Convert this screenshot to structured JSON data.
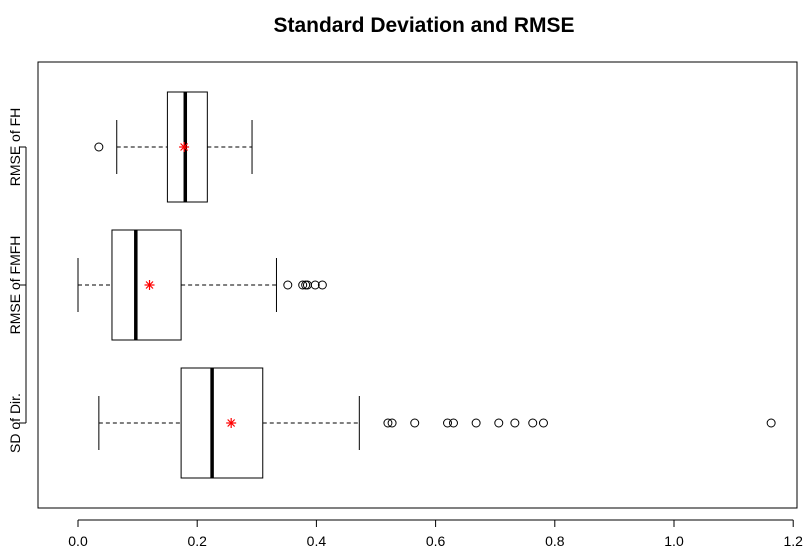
{
  "chart_data": {
    "type": "boxplot",
    "orientation": "horizontal",
    "title": "Standard Deviation and RMSE",
    "xlabel": "",
    "ylabel": "",
    "xlim": [
      -0.05,
      1.22
    ],
    "x_ticks": [
      0.0,
      0.2,
      0.4,
      0.6,
      0.8,
      1.0,
      1.2
    ],
    "x_tick_labels": [
      "0.0",
      "0.2",
      "0.4",
      "0.6",
      "0.8",
      "1.0",
      "1.2"
    ],
    "grid": false,
    "mean_marker_color": "#ff0000",
    "categories": [
      "SD of Dir.",
      "RMSE of FMFH",
      "RMSE of FH"
    ],
    "boxes": [
      {
        "label": "SD of Dir.",
        "whisker_low": 0.035,
        "q1": 0.173,
        "median": 0.225,
        "q3": 0.31,
        "whisker_high": 0.472,
        "mean": 0.257,
        "outliers": [
          0.52,
          0.527,
          0.565,
          0.62,
          0.63,
          0.668,
          0.706,
          0.733,
          0.763,
          0.781,
          1.163
        ]
      },
      {
        "label": "RMSE of FMFH",
        "whisker_low": 0.0,
        "q1": 0.057,
        "median": 0.097,
        "q3": 0.173,
        "whisker_high": 0.333,
        "mean": 0.12,
        "outliers": [
          0.352,
          0.377,
          0.382,
          0.385,
          0.398,
          0.41
        ]
      },
      {
        "label": "RMSE of FH",
        "whisker_low": 0.065,
        "q1": 0.15,
        "median": 0.18,
        "q3": 0.217,
        "whisker_high": 0.292,
        "mean": 0.178,
        "outliers": [
          0.035
        ]
      }
    ]
  }
}
